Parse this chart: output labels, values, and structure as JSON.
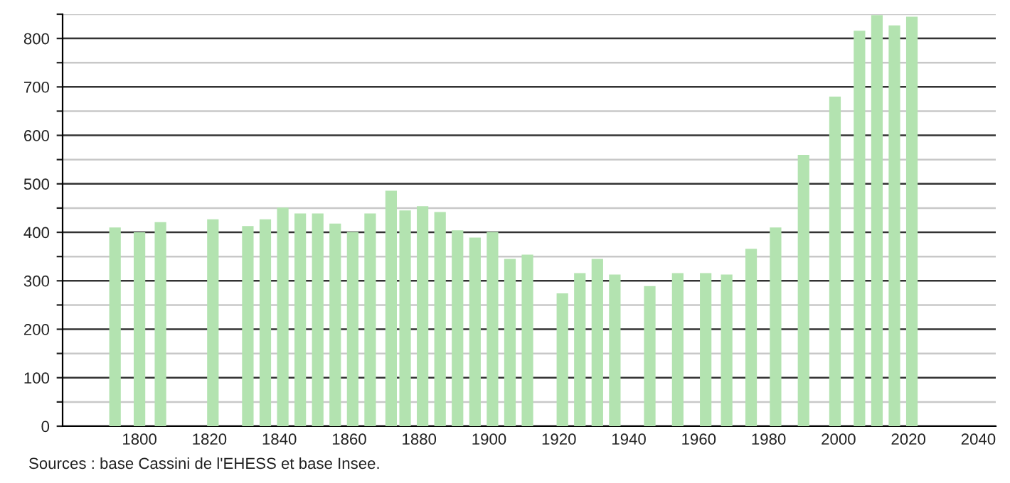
{
  "chart_data": {
    "type": "bar",
    "x": [
      1793,
      1800,
      1806,
      1821,
      1831,
      1836,
      1841,
      1846,
      1851,
      1856,
      1861,
      1866,
      1872,
      1876,
      1881,
      1886,
      1891,
      1896,
      1901,
      1906,
      1911,
      1921,
      1926,
      1931,
      1936,
      1946,
      1954,
      1962,
      1968,
      1975,
      1982,
      1990,
      1999,
      2006,
      2011,
      2016,
      2021
    ],
    "values": [
      410,
      400,
      421,
      427,
      413,
      427,
      451,
      439,
      439,
      418,
      401,
      439,
      486,
      445,
      454,
      442,
      404,
      389,
      401,
      345,
      354,
      274,
      316,
      345,
      313,
      289,
      316,
      316,
      313,
      366,
      410,
      560,
      680,
      816,
      848,
      827,
      845
    ],
    "color": "#b3e3b0",
    "xlim": [
      1778,
      2045
    ],
    "xticks": [
      1800,
      1820,
      1840,
      1860,
      1880,
      1900,
      1920,
      1940,
      1960,
      1980,
      2000,
      2020,
      2040
    ],
    "ylim": [
      0,
      850
    ],
    "yticks": [
      0,
      {
        "value": 50,
        "label": null
      },
      100,
      {
        "value": 150,
        "label": null
      },
      200,
      {
        "value": 250,
        "label": null
      },
      300,
      {
        "value": 350,
        "label": null
      },
      400,
      {
        "value": 450,
        "label": null
      },
      500,
      {
        "value": 550,
        "label": null
      },
      600,
      {
        "value": 650,
        "label": null
      },
      700,
      {
        "value": 750,
        "label": null
      },
      800,
      {
        "value": 850,
        "label": null
      }
    ],
    "grid": "y",
    "annotations": [
      "Sources : base Cassini de l'EHESS et base Insee."
    ]
  }
}
